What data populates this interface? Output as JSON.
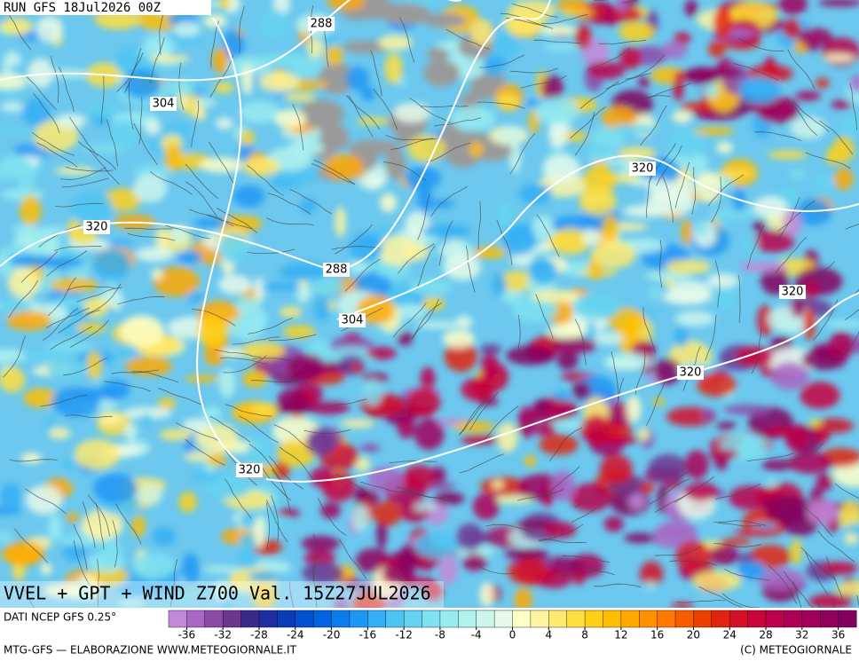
{
  "header": {
    "run": "RUN GFS 18Jul2026 00Z"
  },
  "map": {
    "title": "VVEL + GPT + WIND Z700 Val. 15Z27JUL2026",
    "contour_labels": [
      288,
      304,
      320,
      320,
      288,
      304,
      320,
      320,
      320
    ]
  },
  "colorbar": {
    "source": "DATI NCEP GFS 0.25°",
    "lim": [
      -38,
      38
    ],
    "colors": [
      "#c488d8",
      "#a868c4",
      "#8c4aa8",
      "#6c3690",
      "#3a2a88",
      "#1e2ea0",
      "#0a3cb8",
      "#0050d0",
      "#0064e2",
      "#0a7cf0",
      "#1e96f4",
      "#34aef4",
      "#4cc4f2",
      "#64d4f0",
      "#7ee2f0",
      "#98ecf0",
      "#b2f2ee",
      "#ccf6ec",
      "#e6faea",
      "#ffffc8",
      "#fff4a0",
      "#ffea70",
      "#ffde40",
      "#ffd014",
      "#ffbe00",
      "#ffa800",
      "#ff9000",
      "#ff7800",
      "#f85c00",
      "#ec4000",
      "#e02410",
      "#d41028",
      "#c8063c",
      "#bc024c",
      "#ae0056",
      "#a0005c",
      "#92005e",
      "#84005e"
    ],
    "ticks": [
      -36,
      -32,
      -28,
      -24,
      -20,
      -16,
      -12,
      -8,
      -4,
      0,
      4,
      8,
      12,
      16,
      20,
      24,
      28,
      32,
      36
    ]
  },
  "footer": {
    "credit": "MTG-GFS — ELABORAZIONE WWW.METEOGIORNALE.IT",
    "copyright": "(C) METEOGIORNALE"
  }
}
